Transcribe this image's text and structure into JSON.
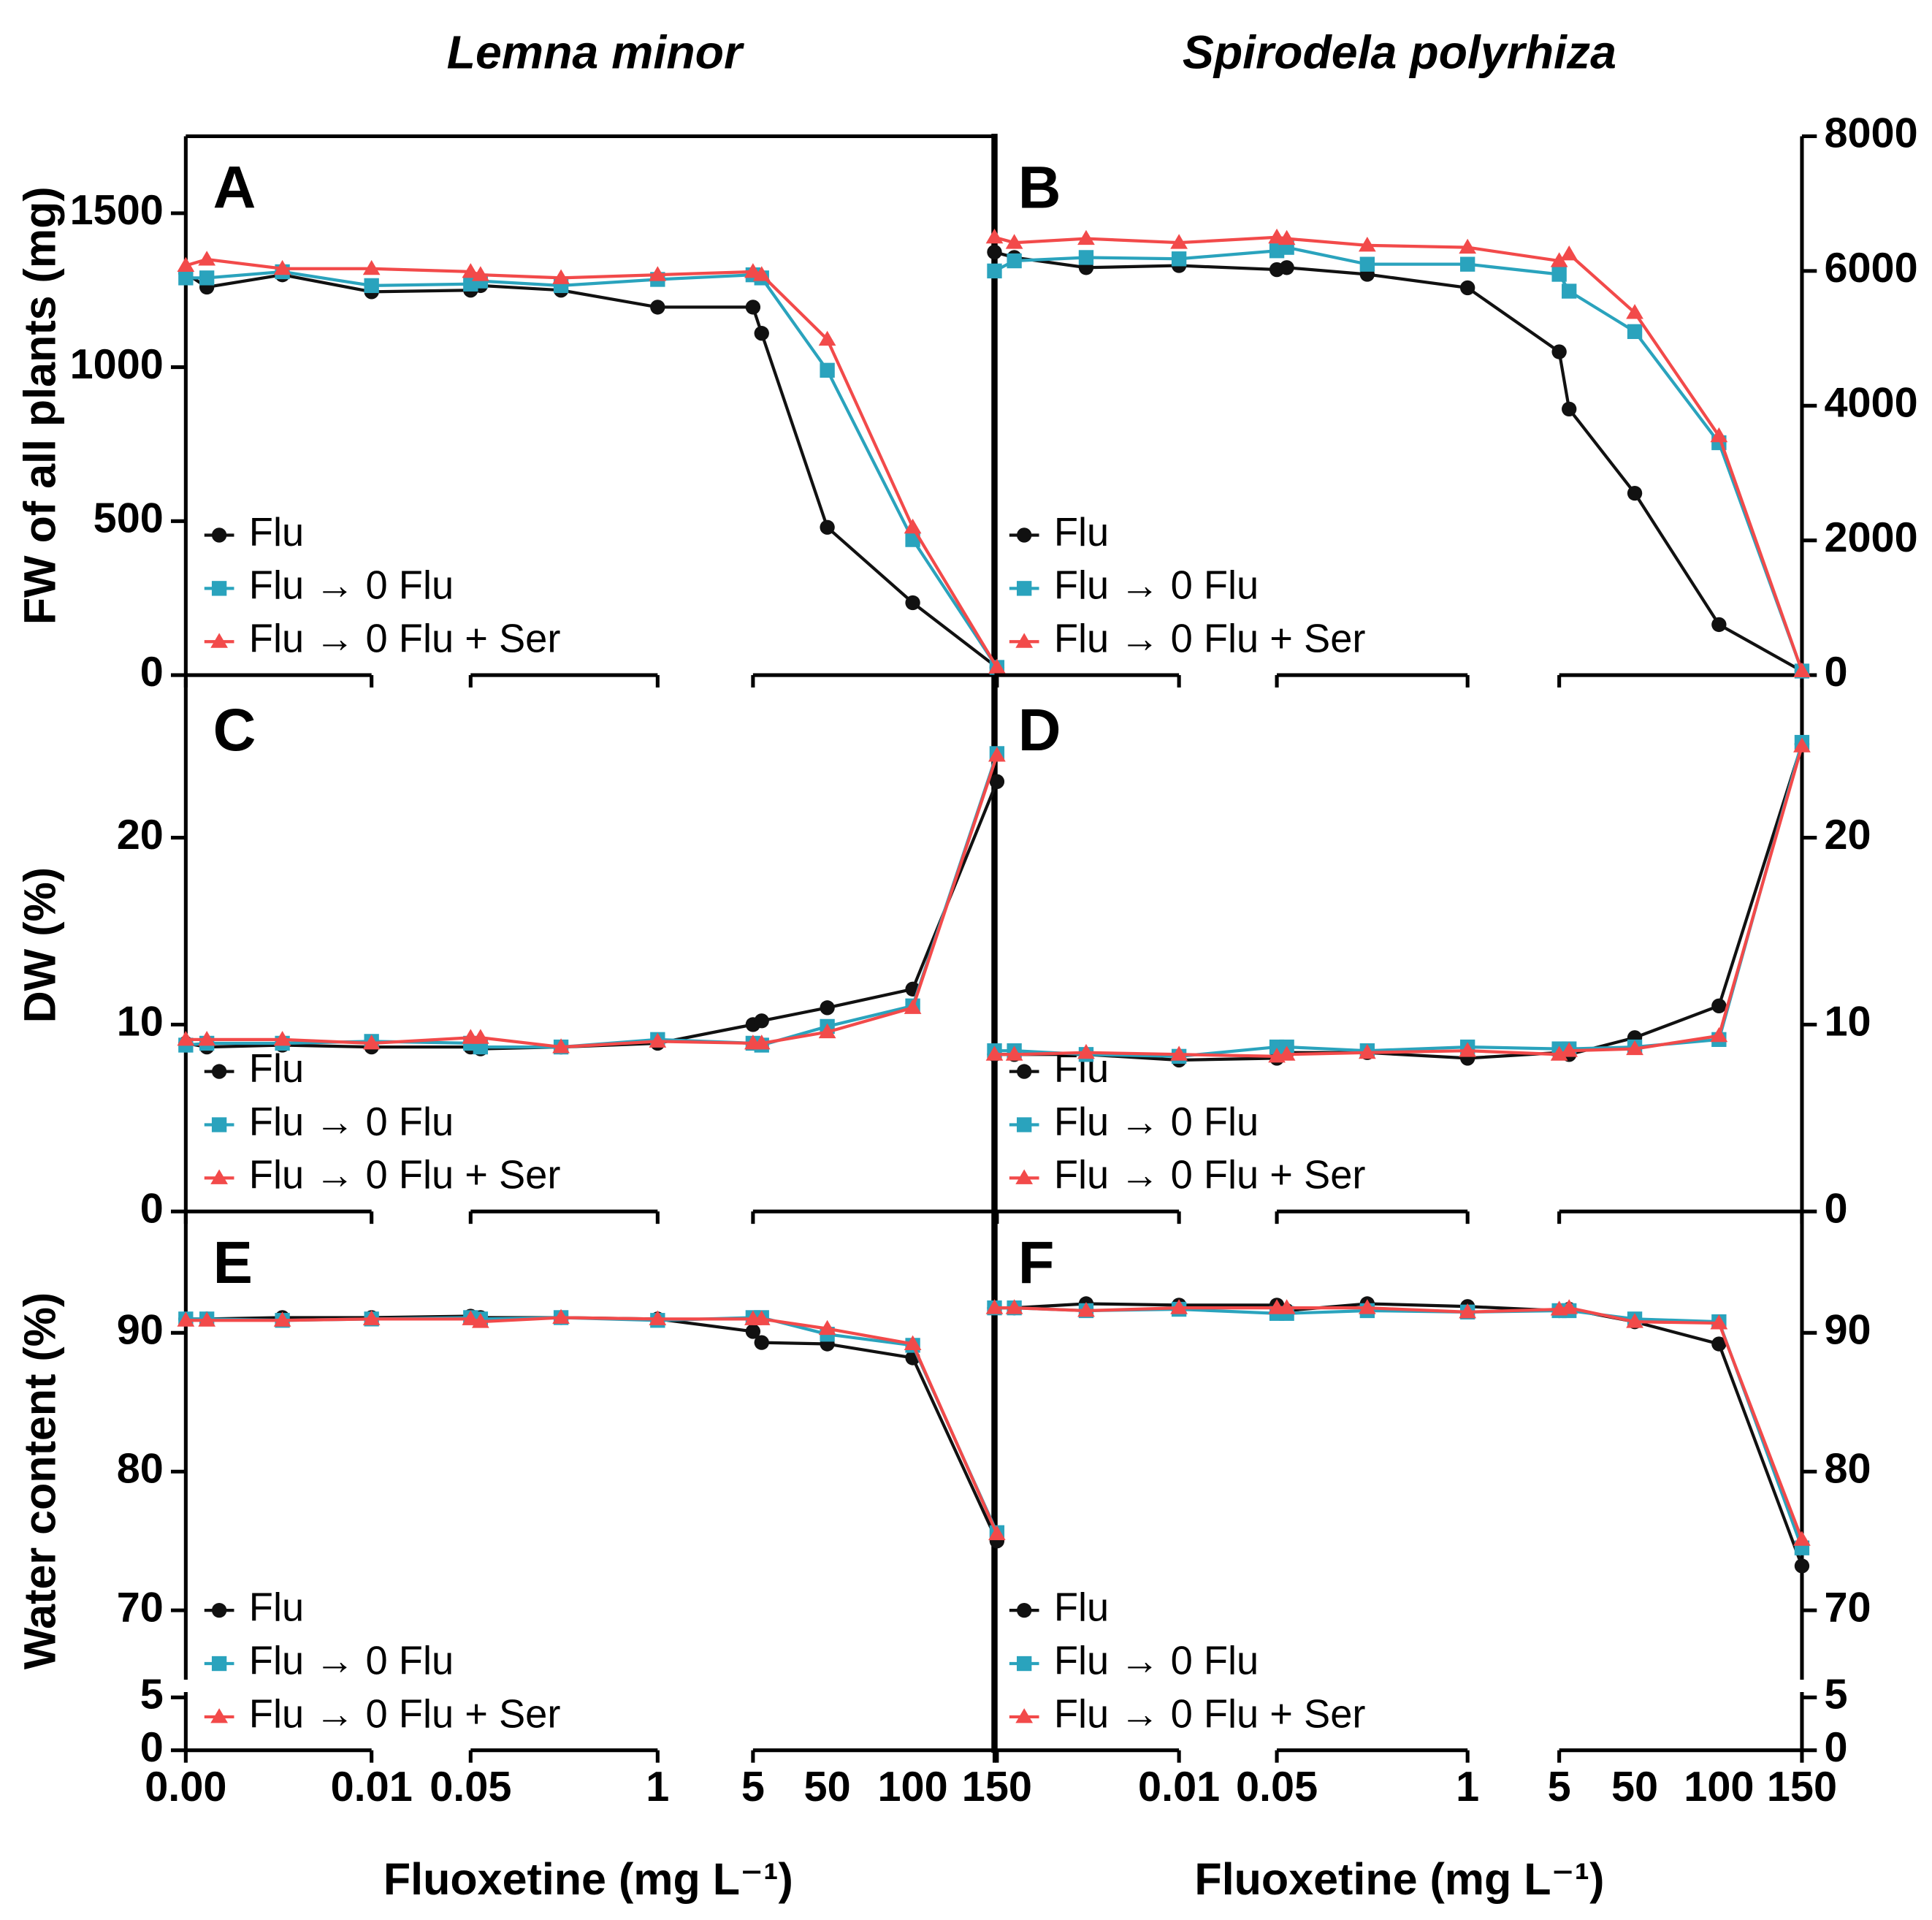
{
  "column_titles": [
    "Lemna minor",
    "Spirodela polyrhiza"
  ],
  "chart_data": [
    {
      "type": "line",
      "title": "A",
      "y_label": "FW of all plants (mg)",
      "y_side": "left",
      "ylim": [
        0,
        1750
      ],
      "yticks": [
        0,
        500,
        1000,
        1500
      ],
      "series": [
        {
          "name": "Flu",
          "color": "#111111",
          "marker": "circle",
          "values": [
            1305,
            1260,
            1300,
            1245,
            1250,
            1265,
            1250,
            1195,
            1195,
            1110,
            480,
            235,
            25
          ]
        },
        {
          "name": "Flu → 0 Flu",
          "color": "#2aa3bd",
          "marker": "square",
          "values": [
            1290,
            1290,
            1310,
            1265,
            1270,
            1280,
            1265,
            1285,
            1300,
            1290,
            990,
            440,
            25
          ]
        },
        {
          "name": "Flu → 0 Flu + Ser",
          "color": "#f24a4a",
          "marker": "triangle",
          "values": [
            1330,
            1350,
            1320,
            1320,
            1310,
            1300,
            1290,
            1300,
            1310,
            1300,
            1090,
            480,
            25
          ]
        }
      ]
    },
    {
      "type": "line",
      "title": "B",
      "y_side": "right",
      "ylim": [
        0,
        8000
      ],
      "yticks": [
        0,
        2000,
        4000,
        6000,
        8000
      ],
      "series": [
        {
          "name": "Flu",
          "color": "#111111",
          "marker": "circle",
          "values": [
            6280,
            6200,
            6050,
            6080,
            6020,
            6050,
            5950,
            5750,
            4800,
            3950,
            2700,
            750,
            60
          ]
        },
        {
          "name": "Flu → 0 Flu",
          "color": "#2aa3bd",
          "marker": "square",
          "values": [
            6000,
            6150,
            6200,
            6180,
            6300,
            6350,
            6100,
            6100,
            5950,
            5700,
            5100,
            3450,
            60
          ]
        },
        {
          "name": "Flu → 0 Flu + Ser",
          "color": "#f24a4a",
          "marker": "triangle",
          "values": [
            6500,
            6420,
            6480,
            6420,
            6500,
            6480,
            6380,
            6350,
            6150,
            6250,
            5380,
            3550,
            60
          ]
        }
      ]
    },
    {
      "type": "line",
      "title": "C",
      "y_label": "DW (%)",
      "y_side": "left",
      "ylim": [
        0,
        28.5
      ],
      "yticks": [
        0,
        10,
        20
      ],
      "series": [
        {
          "name": "Flu",
          "color": "#111111",
          "marker": "circle",
          "values": [
            9.0,
            8.8,
            8.9,
            8.8,
            8.8,
            8.7,
            8.8,
            9.0,
            10.0,
            10.2,
            10.9,
            11.9,
            23.0
          ]
        },
        {
          "name": "Flu → 0 Flu",
          "color": "#2aa3bd",
          "marker": "square",
          "values": [
            8.9,
            9.0,
            9.0,
            9.1,
            9.0,
            8.8,
            8.8,
            9.2,
            9.0,
            8.9,
            9.9,
            11.0,
            24.5
          ]
        },
        {
          "name": "Flu → 0 Flu + Ser",
          "color": "#f24a4a",
          "marker": "triangle",
          "values": [
            9.2,
            9.2,
            9.2,
            9.0,
            9.3,
            9.3,
            8.8,
            9.1,
            9.0,
            9.0,
            9.6,
            10.9,
            24.4
          ]
        }
      ]
    },
    {
      "type": "line",
      "title": "D",
      "y_side": "right",
      "ylim": [
        0,
        28.5
      ],
      "yticks": [
        0,
        10,
        20
      ],
      "series": [
        {
          "name": "Flu",
          "color": "#111111",
          "marker": "circle",
          "values": [
            8.4,
            8.4,
            8.4,
            8.1,
            8.2,
            8.5,
            8.5,
            8.2,
            8.5,
            8.4,
            9.3,
            11.0,
            25.0
          ]
        },
        {
          "name": "Flu → 0 Flu",
          "color": "#2aa3bd",
          "marker": "square",
          "values": [
            8.6,
            8.6,
            8.4,
            8.3,
            8.8,
            8.8,
            8.6,
            8.8,
            8.7,
            8.7,
            8.8,
            9.2,
            25.1
          ]
        },
        {
          "name": "Flu → 0 Flu + Ser",
          "color": "#f24a4a",
          "marker": "triangle",
          "values": [
            8.4,
            8.4,
            8.5,
            8.4,
            8.3,
            8.4,
            8.5,
            8.6,
            8.4,
            8.6,
            8.7,
            9.4,
            24.9
          ]
        }
      ]
    },
    {
      "type": "line",
      "title": "E",
      "y_label": "Water content (%)",
      "y_side": "left",
      "ylim": [
        65,
        98.75
      ],
      "yticks": [
        70,
        80,
        90
      ],
      "ybreak": {
        "ylim": [
          0,
          5.5
        ],
        "yticks": [
          0,
          5
        ]
      },
      "x_label": "Fluoxetine (mg L⁻¹)",
      "categories": [
        "0.00",
        null,
        null,
        "0.01",
        "0.05",
        null,
        null,
        "1",
        "5",
        null,
        "50",
        "100",
        "150"
      ],
      "series": [
        {
          "name": "Flu",
          "color": "#111111",
          "marker": "circle",
          "values": [
            91.0,
            91.0,
            91.1,
            91.1,
            91.2,
            91.1,
            91.1,
            91.0,
            90.1,
            89.3,
            89.2,
            88.2,
            75.0
          ]
        },
        {
          "name": "Flu → 0 Flu",
          "color": "#2aa3bd",
          "marker": "square",
          "values": [
            91.0,
            91.0,
            90.9,
            91.0,
            91.1,
            91.0,
            91.1,
            90.9,
            91.1,
            91.1,
            89.9,
            89.1,
            75.6
          ]
        },
        {
          "name": "Flu → 0 Flu + Ser",
          "color": "#f24a4a",
          "marker": "triangle",
          "values": [
            90.9,
            90.9,
            90.9,
            91.0,
            91.0,
            90.8,
            91.1,
            91.0,
            91.0,
            91.0,
            90.3,
            89.2,
            75.5
          ]
        }
      ]
    },
    {
      "type": "line",
      "title": "F",
      "y_side": "right",
      "ylim": [
        65,
        98.75
      ],
      "yticks": [
        70,
        80,
        90
      ],
      "ybreak": {
        "ylim": [
          0,
          5.5
        ],
        "yticks": [
          0,
          5
        ]
      },
      "x_label": "Fluoxetine (mg L⁻¹)",
      "categories": [
        null,
        null,
        null,
        "0.01",
        "0.05",
        null,
        null,
        "1",
        "5",
        null,
        "50",
        "100",
        "150"
      ],
      "series": [
        {
          "name": "Flu",
          "color": "#111111",
          "marker": "circle",
          "values": [
            91.8,
            91.8,
            92.1,
            92.0,
            92.0,
            91.6,
            92.1,
            91.9,
            91.6,
            91.7,
            90.8,
            89.2,
            73.2
          ]
        },
        {
          "name": "Flu → 0 Flu",
          "color": "#2aa3bd",
          "marker": "square",
          "values": [
            91.8,
            91.8,
            91.6,
            91.7,
            91.4,
            91.4,
            91.6,
            91.5,
            91.6,
            91.6,
            91.0,
            90.8,
            74.5
          ]
        },
        {
          "name": "Flu → 0 Flu + Ser",
          "color": "#f24a4a",
          "marker": "triangle",
          "values": [
            91.8,
            91.8,
            91.6,
            91.8,
            91.8,
            91.8,
            91.8,
            91.5,
            91.7,
            91.8,
            90.8,
            90.7,
            75.1
          ]
        }
      ]
    }
  ]
}
